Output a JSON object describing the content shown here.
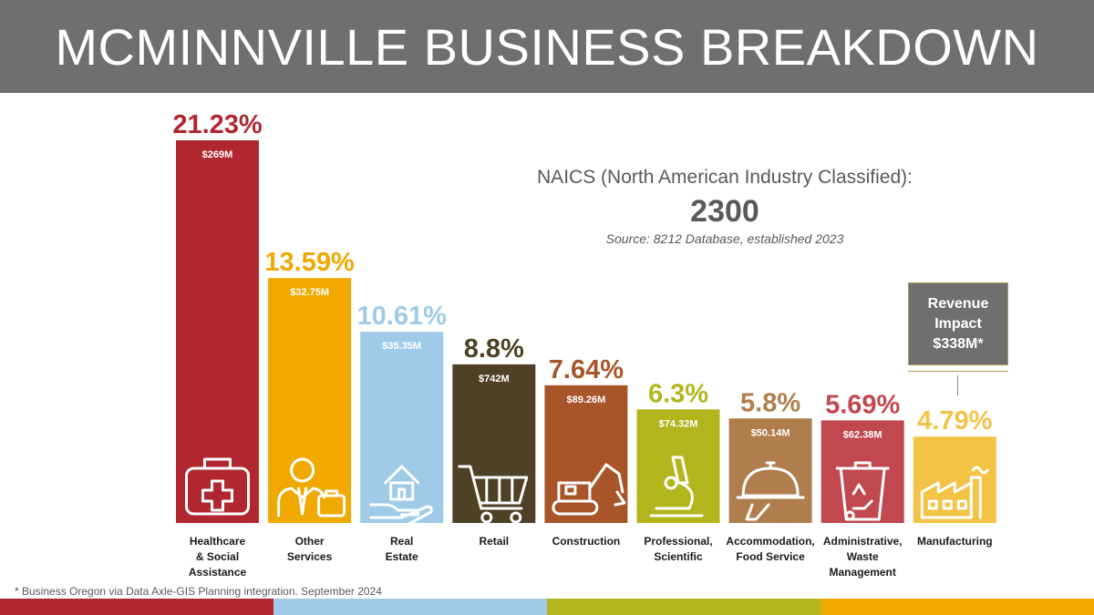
{
  "header": {
    "title": "MCMINNVILLE BUSINESS BREAKDOWN"
  },
  "info": {
    "label": "NAICS (North American Industry Classified):",
    "value": "2300",
    "source": "Source: 8212 Database, established 2023"
  },
  "callout": {
    "line1": "Revenue",
    "line2": "Impact",
    "line3": "$338M*"
  },
  "footnote": "* Business Oregon via Data Axle-GIS Planning integration. September 2024",
  "colors": {
    "stripes": [
      "#b0272f",
      "#9fcbe8",
      "#b3b51c",
      "#efa900"
    ],
    "header": "#6f706d"
  },
  "chart_data": {
    "type": "bar",
    "title": "",
    "xlabel": "",
    "ylabel": "",
    "ylim": [
      0,
      22
    ],
    "categories": [
      [
        "Healthcare",
        "& Social",
        "Assistance"
      ],
      [
        "Other",
        "Services"
      ],
      [
        "Real",
        "Estate"
      ],
      [
        "Retail"
      ],
      [
        "Construction"
      ],
      [
        "Professional,",
        "Scientific"
      ],
      [
        "Accommodation,",
        "Food Service"
      ],
      [
        "Administrative,",
        "Waste",
        "Management"
      ],
      [
        "Manufacturing"
      ]
    ],
    "values": [
      21.23,
      13.59,
      10.61,
      8.8,
      7.64,
      6.3,
      5.8,
      5.69,
      4.79
    ],
    "percent_labels": [
      "21.23%",
      "13.59%",
      "10.61%",
      "8.8%",
      "7.64%",
      "6.3%",
      "5.8%",
      "5.69%",
      "4.79%"
    ],
    "revenue_labels": [
      "$269M",
      "$32.75M",
      "$35.35M",
      "$742M",
      "$89.26M",
      "$74.32M",
      "$50.14M",
      "$62.38M",
      ""
    ],
    "colors": [
      "#b0272f",
      "#efa900",
      "#9fcbe8",
      "#4e4125",
      "#a8552a",
      "#b3b51c",
      "#b07d4d",
      "#c1484f",
      "#f3c346"
    ],
    "icons": [
      "first-aid-kit-icon",
      "businessman-briefcase-icon",
      "house-in-hand-icon",
      "shopping-cart-icon",
      "excavator-icon",
      "microscope-icon",
      "food-cloche-icon",
      "recycling-bin-icon",
      "factory-icon"
    ]
  }
}
